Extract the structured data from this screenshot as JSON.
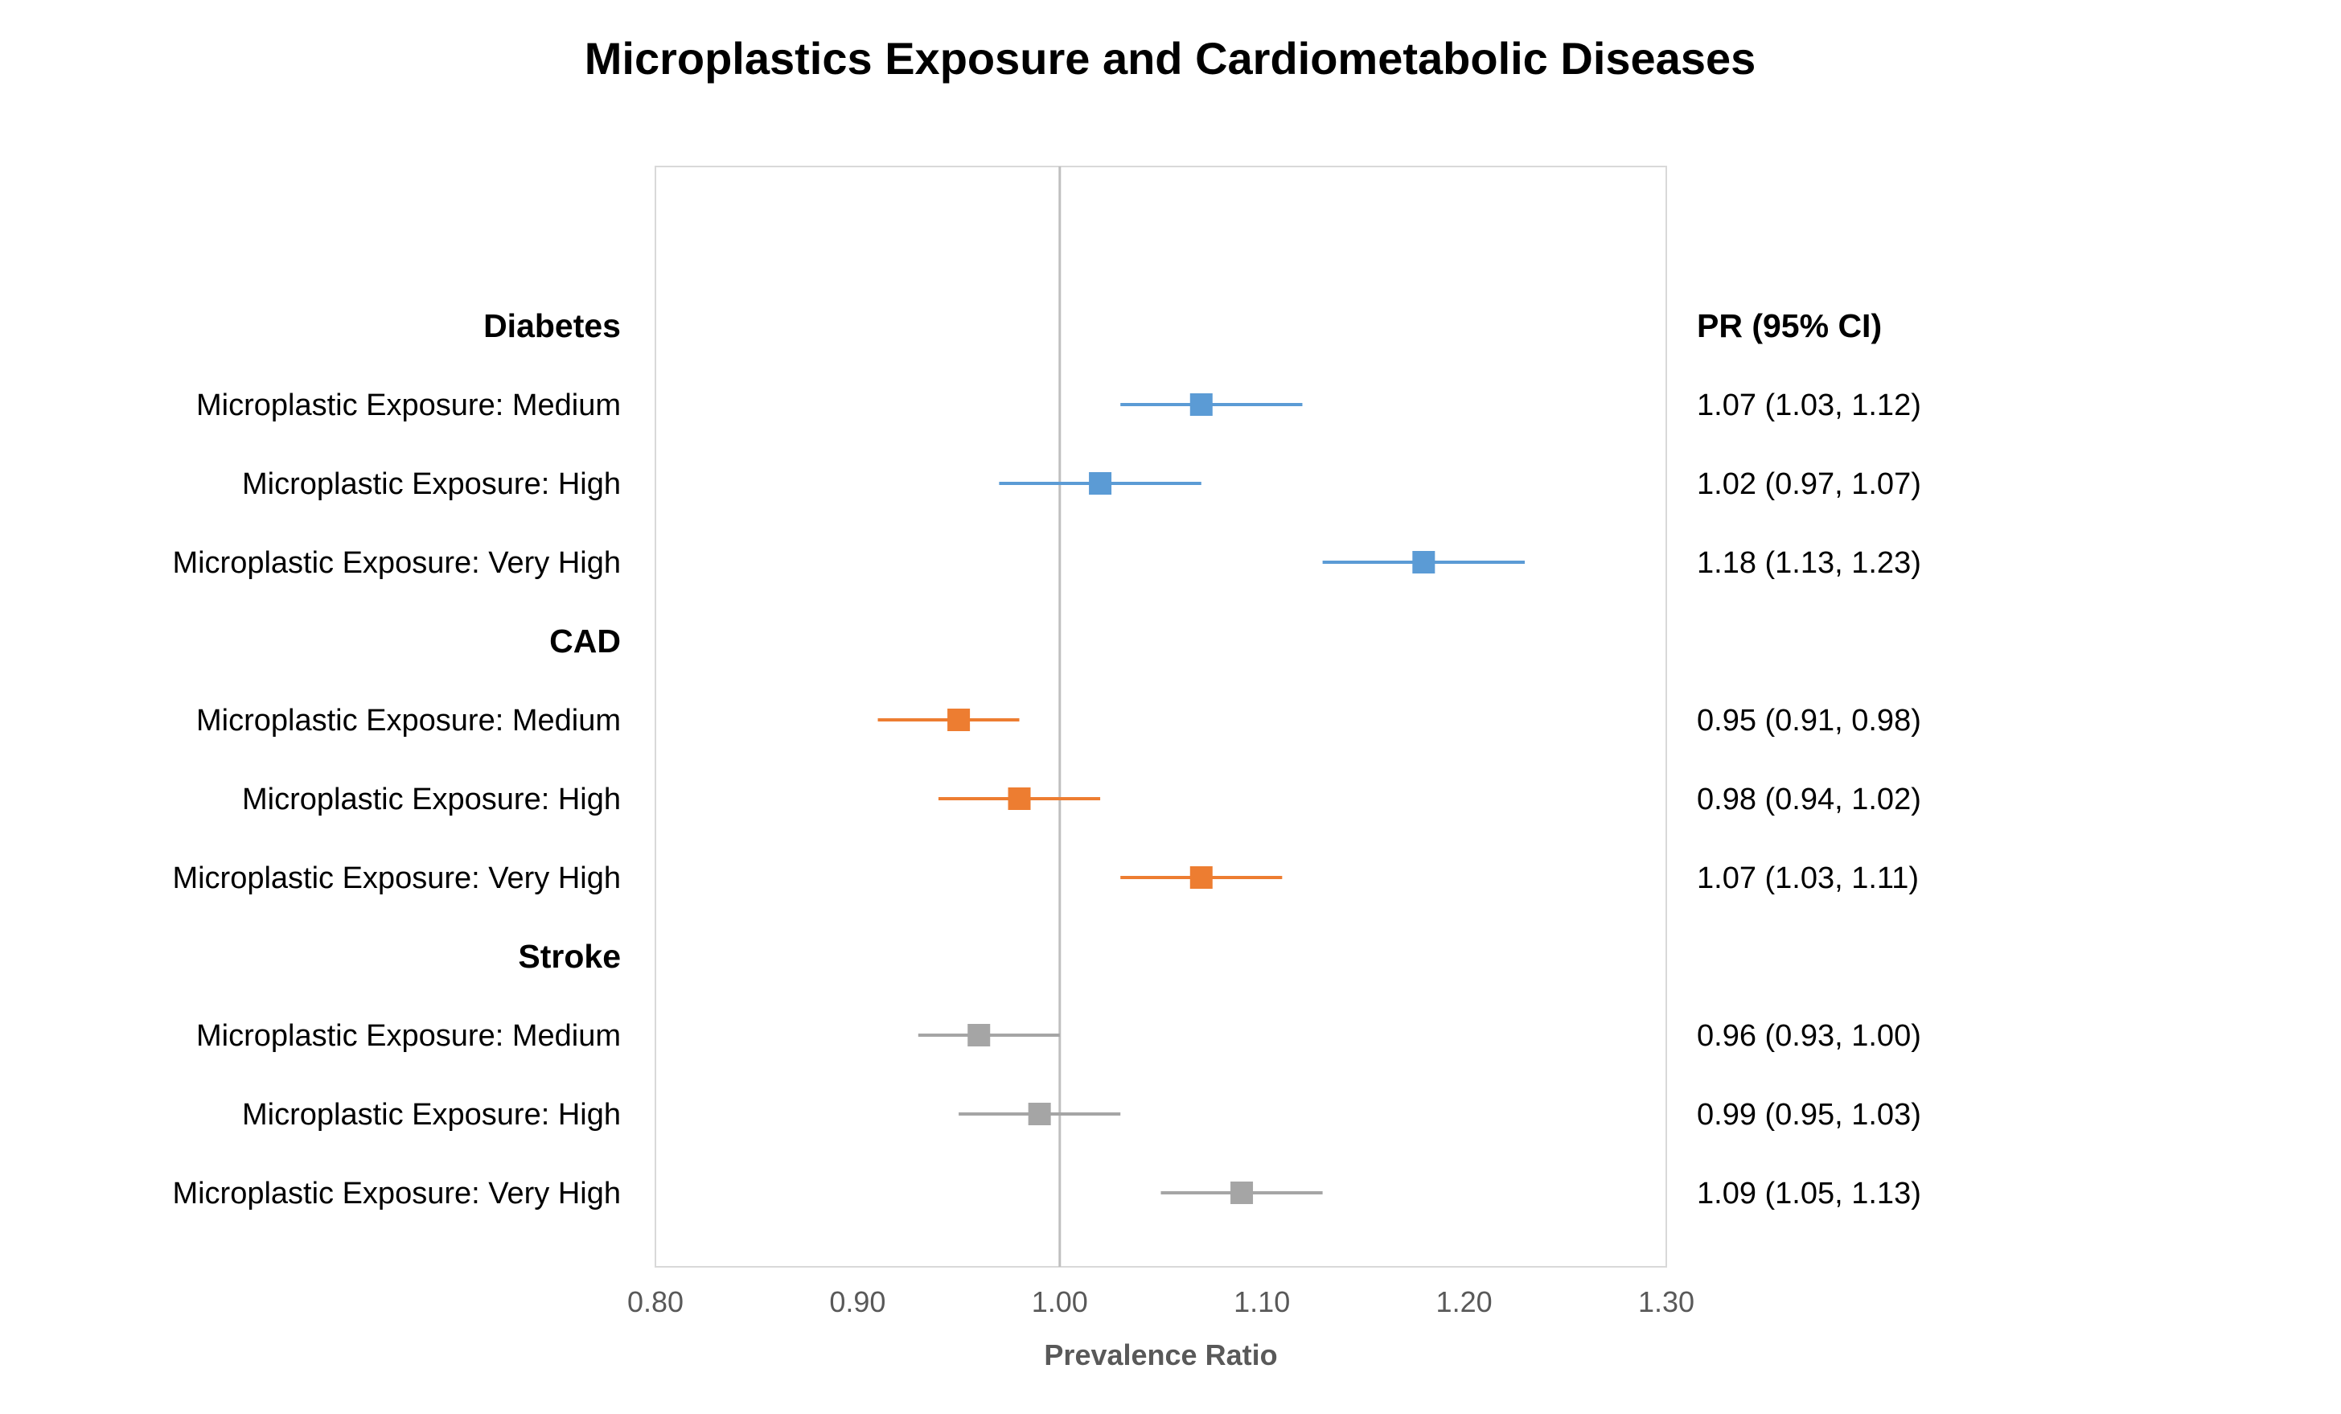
{
  "chart_data": {
    "type": "scatter",
    "subtype": "forest-plot",
    "title": "Microplastics Exposure and Cardiometabolic Diseases",
    "xlabel": "Prevalence Ratio",
    "ylabel": "",
    "xlim": [
      0.8,
      1.3
    ],
    "x_ticks": [
      "0.80",
      "0.90",
      "1.00",
      "1.10",
      "1.20",
      "1.30"
    ],
    "reference_line": 1.0,
    "grid": false,
    "ci_column_header": "PR (95% CI)",
    "groups": [
      {
        "name": "Diabetes",
        "color": "#5B9BD5",
        "rows": [
          {
            "label": "Microplastic Exposure: Medium",
            "pr": 1.07,
            "lower": 1.03,
            "upper": 1.12,
            "ci_text": "1.07 (1.03, 1.12)"
          },
          {
            "label": "Microplastic Exposure: High",
            "pr": 1.02,
            "lower": 0.97,
            "upper": 1.07,
            "ci_text": "1.02 (0.97, 1.07)"
          },
          {
            "label": "Microplastic Exposure: Very High",
            "pr": 1.18,
            "lower": 1.13,
            "upper": 1.23,
            "ci_text": "1.18 (1.13, 1.23)"
          }
        ]
      },
      {
        "name": "CAD",
        "color": "#ED7D31",
        "rows": [
          {
            "label": "Microplastic Exposure: Medium",
            "pr": 0.95,
            "lower": 0.91,
            "upper": 0.98,
            "ci_text": "0.95 (0.91, 0.98)"
          },
          {
            "label": "Microplastic Exposure: High",
            "pr": 0.98,
            "lower": 0.94,
            "upper": 1.02,
            "ci_text": "0.98 (0.94, 1.02)"
          },
          {
            "label": "Microplastic Exposure: Very High",
            "pr": 1.07,
            "lower": 1.03,
            "upper": 1.11,
            "ci_text": "1.07 (1.03, 1.11)"
          }
        ]
      },
      {
        "name": "Stroke",
        "color": "#A5A5A5",
        "rows": [
          {
            "label": "Microplastic Exposure: Medium",
            "pr": 0.96,
            "lower": 0.93,
            "upper": 1.0,
            "ci_text": "0.96 (0.93, 1.00)"
          },
          {
            "label": "Microplastic Exposure: High",
            "pr": 0.99,
            "lower": 0.95,
            "upper": 1.03,
            "ci_text": "0.99 (0.95, 1.03)"
          },
          {
            "label": "Microplastic Exposure: Very High",
            "pr": 1.09,
            "lower": 1.05,
            "upper": 1.13,
            "ci_text": "1.09 (1.05, 1.13)"
          }
        ]
      }
    ],
    "colors": {
      "plot_border": "#D9D9D9",
      "reference_line": "#BFBFBF",
      "tick_text": "#595959"
    }
  }
}
